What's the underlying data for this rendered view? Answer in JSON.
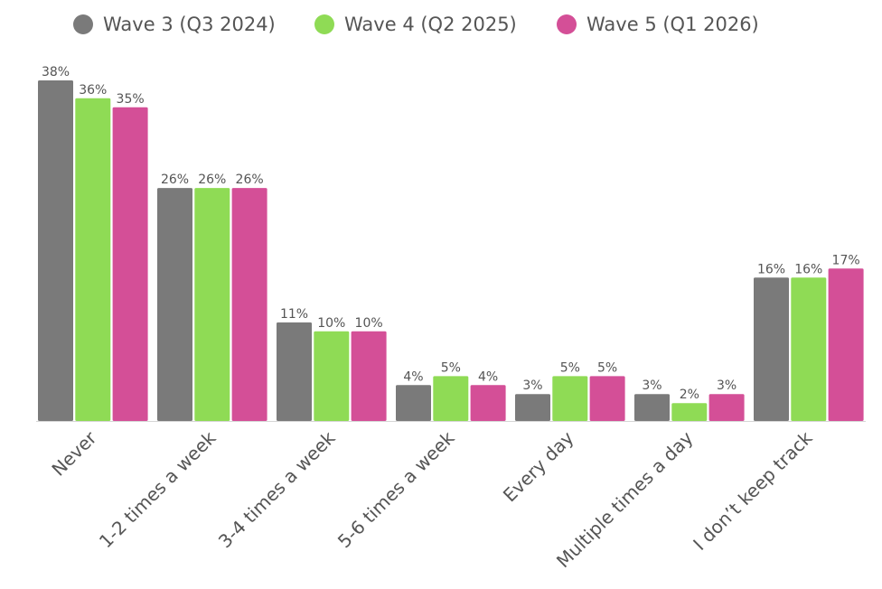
{
  "chart_data": {
    "type": "bar",
    "categories": [
      "Never",
      "1-2 times a week",
      "3-4 times a week",
      "5-6 times a week",
      "Every day",
      "Multiple times a day",
      "I don’t keep track"
    ],
    "series": [
      {
        "name": "Wave 3 (Q3 2024)",
        "color": "#7a7a7a",
        "values": [
          38,
          26,
          11,
          4,
          3,
          3,
          16
        ],
        "labels": [
          "38%",
          "26%",
          "11%",
          "4%",
          "3%",
          "3%",
          "16%"
        ]
      },
      {
        "name": "Wave 4 (Q2 2025)",
        "color": "#8fdb55",
        "values": [
          36,
          26,
          10,
          5,
          5,
          2,
          16
        ],
        "labels": [
          "36%",
          "26%",
          "10%",
          "5%",
          "5%",
          "2%",
          "16%"
        ]
      },
      {
        "name": "Wave 5 (Q1 2026)",
        "color": "#d44f97",
        "values": [
          35,
          26,
          10,
          4,
          5,
          3,
          17
        ],
        "labels": [
          "35%",
          "26%",
          "10%",
          "4%",
          "5%",
          "3%",
          "17%"
        ]
      }
    ],
    "value_suffix": "%",
    "ylim": [
      0,
      38
    ],
    "grid": false,
    "legend_position": "top-center"
  }
}
